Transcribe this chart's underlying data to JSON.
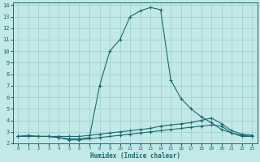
{
  "xlabel": "Humidex (Indice chaleur)",
  "background_color": "#c2e8e8",
  "grid_color": "#9ecece",
  "line_color": "#1a6b6b",
  "xlim": [
    -0.5,
    23.5
  ],
  "ylim": [
    2,
    14.2
  ],
  "yticks": [
    2,
    3,
    4,
    5,
    6,
    7,
    8,
    9,
    10,
    11,
    12,
    13,
    14
  ],
  "xticks": [
    0,
    1,
    2,
    3,
    4,
    5,
    6,
    7,
    8,
    9,
    10,
    11,
    12,
    13,
    14,
    15,
    16,
    17,
    18,
    19,
    20,
    21,
    22,
    23
  ],
  "series": [
    {
      "x": [
        0,
        1,
        2,
        3,
        4,
        5,
        6,
        7,
        8,
        9,
        10,
        11,
        12,
        13,
        14,
        15,
        16,
        17,
        18,
        19,
        20,
        21,
        22,
        23
      ],
      "y": [
        2.6,
        2.7,
        2.6,
        2.6,
        2.5,
        2.4,
        2.4,
        2.5,
        7.0,
        10.0,
        11.0,
        13.0,
        13.5,
        13.8,
        13.6,
        7.5,
        5.9,
        5.0,
        4.3,
        3.8,
        3.2,
        2.9,
        2.6,
        2.6
      ]
    },
    {
      "x": [
        0,
        1,
        2,
        3,
        4,
        5,
        6,
        7,
        8,
        9,
        10,
        11,
        12,
        13,
        14,
        15,
        16,
        17,
        18,
        19,
        20,
        21,
        22,
        23
      ],
      "y": [
        2.6,
        2.6,
        2.6,
        2.6,
        2.6,
        2.6,
        2.6,
        2.7,
        2.8,
        2.9,
        3.0,
        3.1,
        3.2,
        3.3,
        3.5,
        3.6,
        3.7,
        3.8,
        4.0,
        4.2,
        3.7,
        3.1,
        2.8,
        2.7
      ]
    },
    {
      "x": [
        0,
        1,
        2,
        3,
        4,
        5,
        6,
        7,
        8,
        9,
        10,
        11,
        12,
        13,
        14,
        15,
        16,
        17,
        18,
        19,
        20,
        21,
        22,
        23
      ],
      "y": [
        2.6,
        2.6,
        2.6,
        2.6,
        2.5,
        2.3,
        2.3,
        2.4,
        2.5,
        2.6,
        2.7,
        2.8,
        2.9,
        3.0,
        3.1,
        3.2,
        3.3,
        3.4,
        3.5,
        3.6,
        3.5,
        2.9,
        2.7,
        2.6
      ]
    }
  ]
}
